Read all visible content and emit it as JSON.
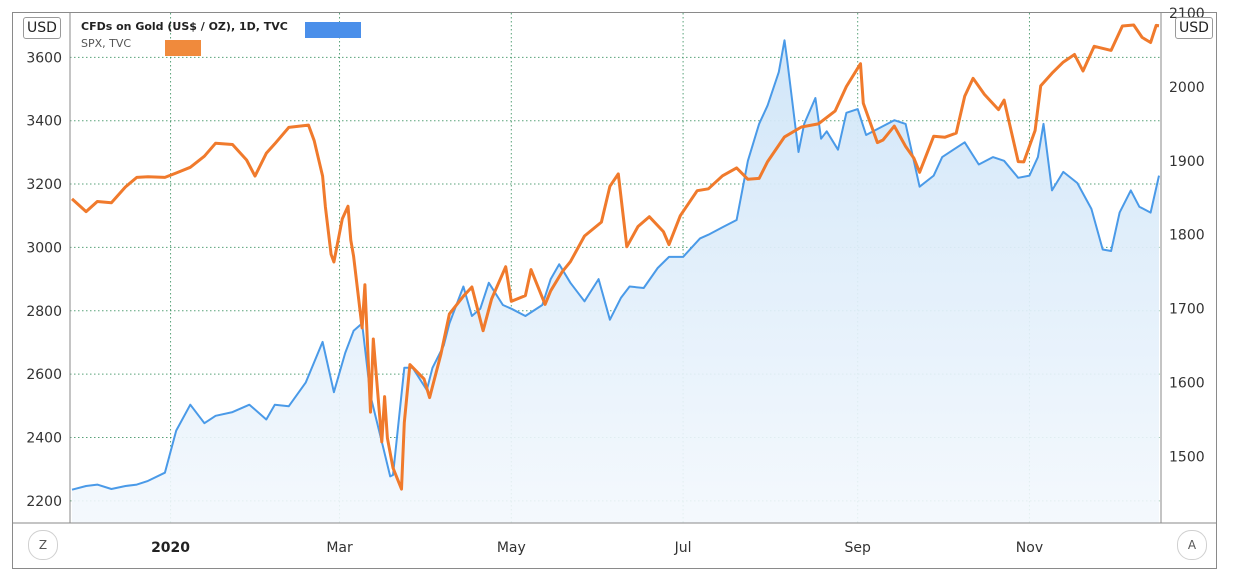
{
  "legend": {
    "gold_label": "CFDs on Gold (US$ / OZ), 1D, TVC",
    "spx_label": "SPX, TVC"
  },
  "axis": {
    "left_unit": "USD",
    "right_unit": "USD",
    "scale_btn_left": "Z",
    "scale_btn_right": "A"
  },
  "colors": {
    "gold": "#4a9ae8",
    "gold_legend": "#4a8fea",
    "spx": "#f07a2c",
    "spx_legend": "#f08a3c",
    "grid": "#2e8b57",
    "area_top": "#cfe5f8",
    "area_bottom": "#f3f8fd"
  },
  "chart_data": {
    "type": "line",
    "title": "",
    "left_axis": {
      "label": "USD",
      "series": "SPX, TVC",
      "ylim": [
        2130,
        3740
      ],
      "ticks": [
        2200,
        2400,
        2600,
        2800,
        3000,
        3200,
        3400,
        3600
      ]
    },
    "right_axis": {
      "label": "USD",
      "series": "CFDs on Gold (US$ / OZ), 1D, TVC",
      "ylim": [
        1410,
        2100
      ],
      "ticks": [
        1500,
        1600,
        1700,
        1800,
        1900,
        2000,
        2100
      ]
    },
    "x_axis": {
      "range": [
        "2019-11-27",
        "2020-12-17"
      ],
      "ticks": [
        {
          "date": "2020-01-01",
          "label": "2020",
          "bold": true
        },
        {
          "date": "2020-03-01",
          "label": "Mar"
        },
        {
          "date": "2020-05-01",
          "label": "May"
        },
        {
          "date": "2020-07-01",
          "label": "Jul"
        },
        {
          "date": "2020-09-01",
          "label": "Sep"
        },
        {
          "date": "2020-11-01",
          "label": "Nov"
        }
      ]
    },
    "grid": true,
    "legend_position": "top-left",
    "series": [
      {
        "name": "CFDs on Gold (US$ / OZ), 1D, TVC",
        "axis": "right",
        "style": "area",
        "points": [
          [
            "2019-11-27",
            1455
          ],
          [
            "2019-12-02",
            1460
          ],
          [
            "2019-12-06",
            1462
          ],
          [
            "2019-12-11",
            1456
          ],
          [
            "2019-12-16",
            1460
          ],
          [
            "2019-12-20",
            1462
          ],
          [
            "2019-12-24",
            1467
          ],
          [
            "2019-12-30",
            1478
          ],
          [
            "2020-01-03",
            1535
          ],
          [
            "2020-01-08",
            1570
          ],
          [
            "2020-01-13",
            1545
          ],
          [
            "2020-01-17",
            1555
          ],
          [
            "2020-01-23",
            1560
          ],
          [
            "2020-01-29",
            1570
          ],
          [
            "2020-02-04",
            1550
          ],
          [
            "2020-02-07",
            1570
          ],
          [
            "2020-02-12",
            1568
          ],
          [
            "2020-02-18",
            1600
          ],
          [
            "2020-02-24",
            1655
          ],
          [
            "2020-02-28",
            1587
          ],
          [
            "2020-03-03",
            1640
          ],
          [
            "2020-03-06",
            1670
          ],
          [
            "2020-03-09",
            1680
          ],
          [
            "2020-03-12",
            1582
          ],
          [
            "2020-03-16",
            1520
          ],
          [
            "2020-03-19",
            1473
          ],
          [
            "2020-03-20",
            1475
          ],
          [
            "2020-03-24",
            1620
          ],
          [
            "2020-03-27",
            1620
          ],
          [
            "2020-04-01",
            1590
          ],
          [
            "2020-04-03",
            1620
          ],
          [
            "2020-04-07",
            1650
          ],
          [
            "2020-04-09",
            1680
          ],
          [
            "2020-04-14",
            1730
          ],
          [
            "2020-04-17",
            1690
          ],
          [
            "2020-04-20",
            1700
          ],
          [
            "2020-04-23",
            1735
          ],
          [
            "2020-04-28",
            1705
          ],
          [
            "2020-05-01",
            1700
          ],
          [
            "2020-05-06",
            1690
          ],
          [
            "2020-05-12",
            1705
          ],
          [
            "2020-05-15",
            1740
          ],
          [
            "2020-05-18",
            1760
          ],
          [
            "2020-05-22",
            1735
          ],
          [
            "2020-05-27",
            1710
          ],
          [
            "2020-06-01",
            1740
          ],
          [
            "2020-06-05",
            1685
          ],
          [
            "2020-06-09",
            1715
          ],
          [
            "2020-06-12",
            1730
          ],
          [
            "2020-06-17",
            1728
          ],
          [
            "2020-06-22",
            1755
          ],
          [
            "2020-06-26",
            1770
          ],
          [
            "2020-07-01",
            1770
          ],
          [
            "2020-07-07",
            1795
          ],
          [
            "2020-07-10",
            1800
          ],
          [
            "2020-07-15",
            1810
          ],
          [
            "2020-07-20",
            1820
          ],
          [
            "2020-07-24",
            1900
          ],
          [
            "2020-07-28",
            1950
          ],
          [
            "2020-07-31",
            1975
          ],
          [
            "2020-08-04",
            2020
          ],
          [
            "2020-08-06",
            2063
          ],
          [
            "2020-08-07",
            2035
          ],
          [
            "2020-08-11",
            1912
          ],
          [
            "2020-08-13",
            1950
          ],
          [
            "2020-08-17",
            1985
          ],
          [
            "2020-08-19",
            1930
          ],
          [
            "2020-08-21",
            1940
          ],
          [
            "2020-08-25",
            1915
          ],
          [
            "2020-08-28",
            1965
          ],
          [
            "2020-09-01",
            1970
          ],
          [
            "2020-09-04",
            1935
          ],
          [
            "2020-09-09",
            1945
          ],
          [
            "2020-09-14",
            1955
          ],
          [
            "2020-09-18",
            1950
          ],
          [
            "2020-09-23",
            1865
          ],
          [
            "2020-09-28",
            1880
          ],
          [
            "2020-10-01",
            1905
          ],
          [
            "2020-10-05",
            1915
          ],
          [
            "2020-10-09",
            1925
          ],
          [
            "2020-10-14",
            1895
          ],
          [
            "2020-10-19",
            1905
          ],
          [
            "2020-10-23",
            1900
          ],
          [
            "2020-10-28",
            1877
          ],
          [
            "2020-11-01",
            1880
          ],
          [
            "2020-11-04",
            1905
          ],
          [
            "2020-11-06",
            1950
          ],
          [
            "2020-11-09",
            1860
          ],
          [
            "2020-11-13",
            1885
          ],
          [
            "2020-11-18",
            1870
          ],
          [
            "2020-11-23",
            1835
          ],
          [
            "2020-11-27",
            1780
          ],
          [
            "2020-11-30",
            1778
          ],
          [
            "2020-12-03",
            1830
          ],
          [
            "2020-12-07",
            1860
          ],
          [
            "2020-12-10",
            1838
          ],
          [
            "2020-12-14",
            1830
          ],
          [
            "2020-12-17",
            1880
          ]
        ]
      },
      {
        "name": "SPX, TVC",
        "axis": "left",
        "style": "line",
        "points": [
          [
            "2019-11-27",
            3153
          ],
          [
            "2019-12-02",
            3113
          ],
          [
            "2019-12-06",
            3145
          ],
          [
            "2019-12-11",
            3141
          ],
          [
            "2019-12-16",
            3191
          ],
          [
            "2019-12-20",
            3221
          ],
          [
            "2019-12-24",
            3223
          ],
          [
            "2019-12-30",
            3221
          ],
          [
            "2020-01-03",
            3235
          ],
          [
            "2020-01-08",
            3253
          ],
          [
            "2020-01-13",
            3288
          ],
          [
            "2020-01-17",
            3329
          ],
          [
            "2020-01-23",
            3325
          ],
          [
            "2020-01-28",
            3276
          ],
          [
            "2020-01-31",
            3225
          ],
          [
            "2020-02-04",
            3297
          ],
          [
            "2020-02-07",
            3327
          ],
          [
            "2020-02-12",
            3379
          ],
          [
            "2020-02-19",
            3386
          ],
          [
            "2020-02-21",
            3337
          ],
          [
            "2020-02-24",
            3225
          ],
          [
            "2020-02-25",
            3128
          ],
          [
            "2020-02-27",
            2978
          ],
          [
            "2020-02-28",
            2954
          ],
          [
            "2020-03-02",
            3090
          ],
          [
            "2020-03-04",
            3130
          ],
          [
            "2020-03-05",
            3023
          ],
          [
            "2020-03-06",
            2972
          ],
          [
            "2020-03-09",
            2746
          ],
          [
            "2020-03-10",
            2882
          ],
          [
            "2020-03-12",
            2480
          ],
          [
            "2020-03-13",
            2711
          ],
          [
            "2020-03-16",
            2386
          ],
          [
            "2020-03-17",
            2529
          ],
          [
            "2020-03-18",
            2398
          ],
          [
            "2020-03-20",
            2304
          ],
          [
            "2020-03-23",
            2237
          ],
          [
            "2020-03-24",
            2447
          ],
          [
            "2020-03-26",
            2630
          ],
          [
            "2020-03-31",
            2585
          ],
          [
            "2020-04-02",
            2526
          ],
          [
            "2020-04-06",
            2663
          ],
          [
            "2020-04-09",
            2790
          ],
          [
            "2020-04-14",
            2846
          ],
          [
            "2020-04-17",
            2875
          ],
          [
            "2020-04-21",
            2737
          ],
          [
            "2020-04-24",
            2837
          ],
          [
            "2020-04-29",
            2939
          ],
          [
            "2020-05-01",
            2830
          ],
          [
            "2020-05-06",
            2848
          ],
          [
            "2020-05-08",
            2930
          ],
          [
            "2020-05-13",
            2820
          ],
          [
            "2020-05-15",
            2863
          ],
          [
            "2020-05-19",
            2922
          ],
          [
            "2020-05-22",
            2955
          ],
          [
            "2020-05-27",
            3036
          ],
          [
            "2020-06-02",
            3080
          ],
          [
            "2020-06-05",
            3193
          ],
          [
            "2020-06-08",
            3232
          ],
          [
            "2020-06-11",
            3002
          ],
          [
            "2020-06-15",
            3066
          ],
          [
            "2020-06-19",
            3097
          ],
          [
            "2020-06-24",
            3050
          ],
          [
            "2020-06-26",
            3009
          ],
          [
            "2020-06-30",
            3100
          ],
          [
            "2020-07-06",
            3179
          ],
          [
            "2020-07-10",
            3185
          ],
          [
            "2020-07-15",
            3226
          ],
          [
            "2020-07-20",
            3251
          ],
          [
            "2020-07-24",
            3215
          ],
          [
            "2020-07-28",
            3218
          ],
          [
            "2020-07-31",
            3271
          ],
          [
            "2020-08-06",
            3349
          ],
          [
            "2020-08-12",
            3380
          ],
          [
            "2020-08-18",
            3390
          ],
          [
            "2020-08-24",
            3431
          ],
          [
            "2020-08-28",
            3508
          ],
          [
            "2020-09-02",
            3580
          ],
          [
            "2020-09-03",
            3455
          ],
          [
            "2020-09-08",
            3331
          ],
          [
            "2020-09-10",
            3339
          ],
          [
            "2020-09-14",
            3383
          ],
          [
            "2020-09-18",
            3319
          ],
          [
            "2020-09-21",
            3281
          ],
          [
            "2020-09-23",
            3237
          ],
          [
            "2020-09-28",
            3351
          ],
          [
            "2020-10-02",
            3348
          ],
          [
            "2020-10-06",
            3361
          ],
          [
            "2020-10-09",
            3477
          ],
          [
            "2020-10-12",
            3534
          ],
          [
            "2020-10-16",
            3483
          ],
          [
            "2020-10-21",
            3435
          ],
          [
            "2020-10-23",
            3465
          ],
          [
            "2020-10-28",
            3271
          ],
          [
            "2020-10-30",
            3270
          ],
          [
            "2020-11-03",
            3369
          ],
          [
            "2020-11-05",
            3510
          ],
          [
            "2020-11-09",
            3550
          ],
          [
            "2020-11-13",
            3585
          ],
          [
            "2020-11-17",
            3609
          ],
          [
            "2020-11-20",
            3557
          ],
          [
            "2020-11-24",
            3635
          ],
          [
            "2020-11-30",
            3622
          ],
          [
            "2020-12-04",
            3699
          ],
          [
            "2020-12-08",
            3702
          ],
          [
            "2020-12-11",
            3663
          ],
          [
            "2020-12-14",
            3647
          ],
          [
            "2020-12-16",
            3701
          ],
          [
            "2020-12-17",
            3700
          ]
        ]
      }
    ]
  }
}
